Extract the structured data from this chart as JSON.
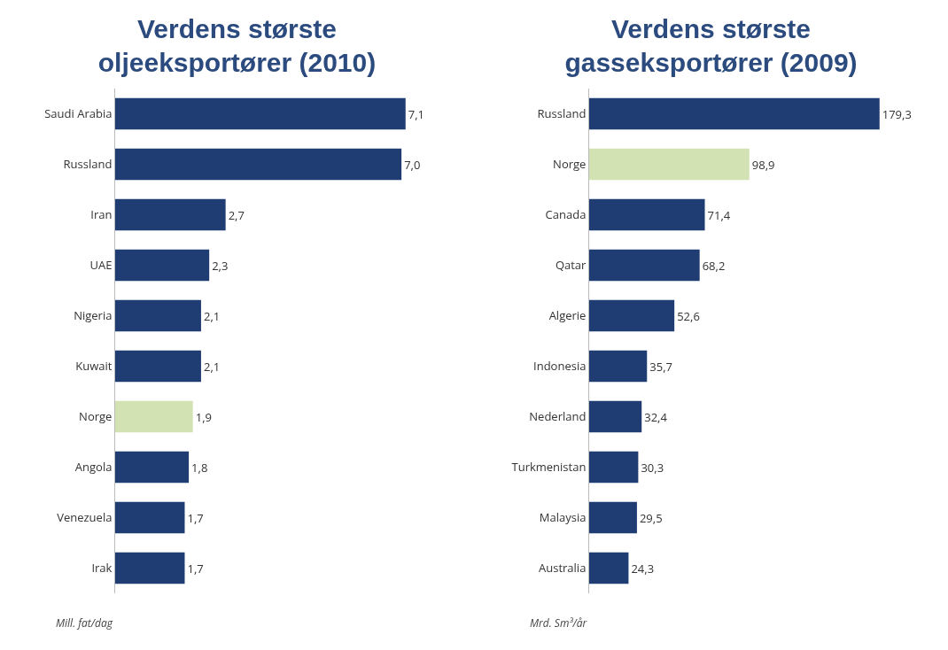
{
  "chart_data": [
    {
      "type": "bar",
      "orientation": "horizontal",
      "title": "Verdens største oljeeksportører (2010)",
      "categories": [
        "Saudi Arabia",
        "Russland",
        "Iran",
        "UAE",
        "Nigeria",
        "Kuwait",
        "Norge",
        "Angola",
        "Venezuela",
        "Irak"
      ],
      "values": [
        7.1,
        7.0,
        2.7,
        2.3,
        2.1,
        2.1,
        1.9,
        1.8,
        1.7,
        1.7
      ],
      "value_labels": [
        "7,1",
        "7,0",
        "2,7",
        "2,3",
        "2,1",
        "2,1",
        "1,9",
        "1,8",
        "1,7",
        "1,7"
      ],
      "colors": [
        "#1f3d73",
        "#1f3d73",
        "#1f3d73",
        "#1f3d73",
        "#1f3d73",
        "#1f3d73",
        "#d3e2b3",
        "#1f3d73",
        "#1f3d73",
        "#1f3d73"
      ],
      "tick_labels": "y",
      "annotations": [
        "Mill. fat/dag"
      ]
    },
    {
      "type": "bar",
      "orientation": "horizontal",
      "title": "Verdens største gasseksportører (2009)",
      "categories": [
        "Russland",
        "Norge",
        "Canada",
        "Qatar",
        "Algerie",
        "Indonesia",
        "Nederland",
        "Turkmenistan",
        "Malaysia",
        "Australia"
      ],
      "values": [
        179.3,
        98.9,
        71.4,
        68.2,
        52.6,
        35.7,
        32.4,
        30.3,
        29.5,
        24.3
      ],
      "value_labels": [
        "179,3",
        "98,9",
        "71,4",
        "68,2",
        "52,6",
        "35,7",
        "32,4",
        "30,3",
        "29,5",
        "24,3"
      ],
      "colors": [
        "#1f3d73",
        "#d3e2b3",
        "#1f3d73",
        "#1f3d73",
        "#1f3d73",
        "#1f3d73",
        "#1f3d73",
        "#1f3d73",
        "#1f3d73",
        "#1f3d73"
      ],
      "tick_labels": "y",
      "annotations": [
        "Mrd. Sm³/år"
      ]
    }
  ]
}
